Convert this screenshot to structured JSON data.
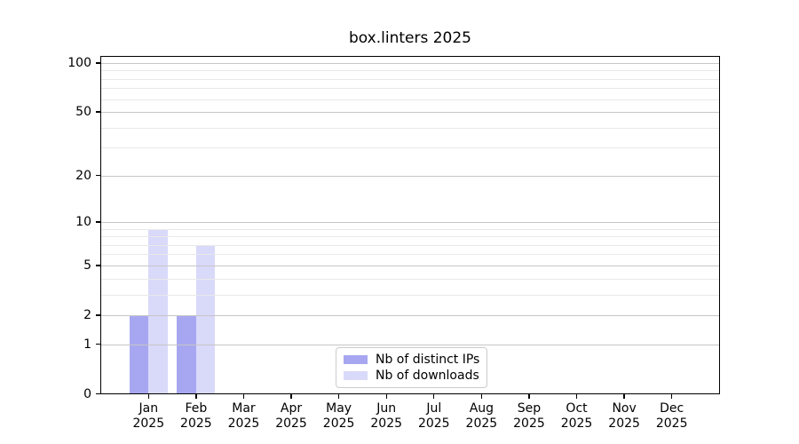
{
  "chart_data": {
    "type": "bar",
    "title": "box.linters 2025",
    "categories": [
      "Jan",
      "Feb",
      "Mar",
      "Apr",
      "May",
      "Jun",
      "Jul",
      "Aug",
      "Sep",
      "Oct",
      "Nov",
      "Dec"
    ],
    "year": "2025",
    "series": [
      {
        "name": "Nb of distinct IPs",
        "color": "#a7a7f1",
        "values": [
          2,
          2,
          0,
          0,
          0,
          0,
          0,
          0,
          0,
          0,
          0,
          0
        ]
      },
      {
        "name": "Nb of downloads",
        "color": "#d9d9fa",
        "values": [
          9,
          7,
          0,
          0,
          0,
          0,
          0,
          0,
          0,
          0,
          0,
          0
        ]
      }
    ],
    "xlabel": "",
    "ylabel": "",
    "yscale": "log1p",
    "ylim": [
      0,
      110.5
    ],
    "y_major_ticks": [
      0,
      1,
      2,
      5,
      10,
      20,
      50,
      100
    ],
    "y_minor_ticks": [
      3,
      4,
      6,
      7,
      8,
      9,
      30,
      40,
      60,
      70,
      80,
      90
    ],
    "grid": "horizontal major+minor, drawn above bars",
    "legend_position": "inside lower center"
  },
  "colors": {
    "bar_distinct_ips": "#a7a7f1",
    "bar_downloads": "#d9d9fa",
    "grid_major": "#c6c6c6",
    "grid_minor": "#e9e9e9",
    "spine": "#000000",
    "text": "#000000",
    "legend_border": "#cccccc",
    "background": "#ffffff"
  }
}
